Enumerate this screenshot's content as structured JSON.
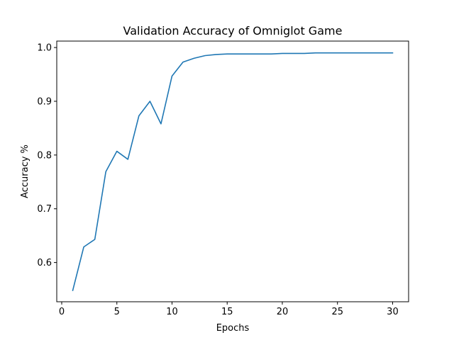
{
  "chart_data": {
    "type": "line",
    "title": "Validation Accuracy of Omniglot Game",
    "xlabel": "Epochs",
    "ylabel": "Accuracy %",
    "xlim": [
      -0.45,
      31.45
    ],
    "ylim": [
      0.527,
      1.012
    ],
    "xticks": [
      0,
      5,
      10,
      15,
      20,
      25,
      30
    ],
    "yticks": [
      0.6,
      0.7,
      0.8,
      0.9,
      1.0
    ],
    "xtick_labels": [
      "0",
      "5",
      "10",
      "15",
      "20",
      "25",
      "30"
    ],
    "ytick_labels": [
      "0.6",
      "0.7",
      "0.8",
      "0.9",
      "1.0"
    ],
    "grid": false,
    "series": [
      {
        "color": "#1f77b4",
        "x": [
          1,
          2,
          3,
          4,
          5,
          6,
          7,
          8,
          9,
          10,
          11,
          12,
          13,
          14,
          15,
          16,
          17,
          18,
          19,
          20,
          21,
          22,
          23,
          24,
          25,
          26,
          27,
          28,
          29,
          30
        ],
        "y": [
          0.548,
          0.629,
          0.643,
          0.769,
          0.807,
          0.792,
          0.873,
          0.9,
          0.858,
          0.947,
          0.973,
          0.98,
          0.985,
          0.987,
          0.988,
          0.988,
          0.988,
          0.988,
          0.988,
          0.989,
          0.989,
          0.989,
          0.99,
          0.99,
          0.99,
          0.99,
          0.99,
          0.99,
          0.99,
          0.99
        ]
      }
    ]
  }
}
